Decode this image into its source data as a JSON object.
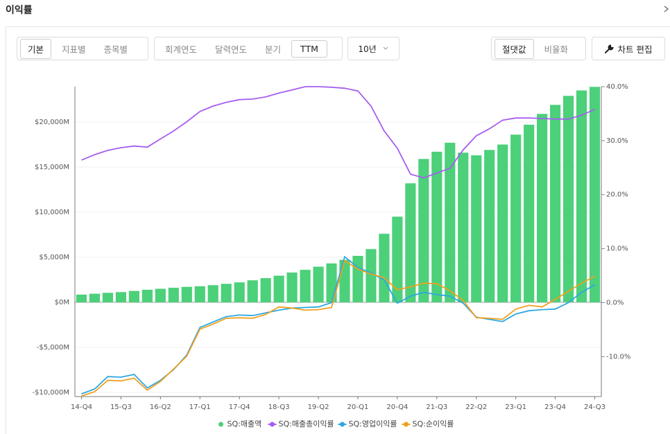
{
  "header": {
    "title": "이익률"
  },
  "toolbar": {
    "view_tabs": [
      "기본",
      "지표별",
      "종목별"
    ],
    "period_tabs": [
      "회계연도",
      "달력연도",
      "분기",
      "TTM"
    ],
    "range": "10년",
    "mode_tabs": [
      "절댓값",
      "비율화"
    ],
    "edit": "차트 편집"
  },
  "chart_data": {
    "type": "combo",
    "categories": [
      "14-Q4",
      null,
      null,
      "15-Q3",
      null,
      null,
      "16-Q2",
      null,
      null,
      "17-Q1",
      null,
      null,
      "17-Q4",
      null,
      null,
      "18-Q3",
      null,
      null,
      "19-Q2",
      null,
      null,
      "20-Q1",
      null,
      null,
      "20-Q4",
      null,
      null,
      "21-Q3",
      null,
      null,
      "22-Q2",
      null,
      null,
      "23-Q1",
      null,
      null,
      "23-Q4",
      null,
      null,
      "24-Q3"
    ],
    "ylim": [
      -10460,
      23920
    ],
    "yticks": [
      {
        "value": -10000,
        "label": "-$10,000M"
      },
      {
        "value": -5000,
        "label": "-$5,000M"
      },
      {
        "value": 0,
        "label": "$0M"
      },
      {
        "value": 5000,
        "label": "$5,000M"
      },
      {
        "value": 10000,
        "label": "$10,000M"
      },
      {
        "value": 15000,
        "label": "$15,000M"
      },
      {
        "value": 20000,
        "label": "$20,000M"
      }
    ],
    "y2lim": [
      -17.4,
      40.0
    ],
    "y2ticks": [
      {
        "value": -10,
        "label": "-10.0%"
      },
      {
        "value": 0,
        "label": "0.0%"
      },
      {
        "value": 10,
        "label": "10.0%"
      },
      {
        "value": 20,
        "label": "20.0%"
      },
      {
        "value": 30,
        "label": "30.0%"
      },
      {
        "value": 40,
        "label": "40.0%"
      }
    ],
    "grid": true,
    "legend": "bottom",
    "series": [
      {
        "name": "SQ:매출액",
        "type": "bar",
        "color": "#4cd07a",
        "values": [
          850,
          950,
          1050,
          1130,
          1260,
          1390,
          1500,
          1610,
          1710,
          1780,
          1900,
          2050,
          2210,
          2440,
          2680,
          2950,
          3300,
          3600,
          3950,
          4310,
          4710,
          5150,
          5900,
          7600,
          9500,
          13200,
          15900,
          16700,
          17700,
          16600,
          16300,
          16900,
          17500,
          18600,
          19700,
          20900,
          21900,
          22900,
          23500,
          23900
        ]
      },
      {
        "name": "SQ:매출총이익률",
        "type": "line",
        "axis": "y2",
        "color": "#a55ef0",
        "values": [
          26.4,
          27.4,
          28.2,
          28.7,
          29.0,
          28.8,
          30.3,
          31.8,
          33.5,
          35.4,
          36.4,
          37.1,
          37.6,
          37.7,
          38.1,
          38.8,
          39.4,
          40.0,
          40.0,
          39.9,
          39.7,
          39.2,
          36.4,
          31.8,
          28.6,
          23.8,
          23.1,
          24.0,
          24.9,
          28.3,
          30.9,
          32.2,
          33.8,
          34.2,
          34.2,
          34.1,
          34.0,
          34.0,
          34.7,
          35.8
        ]
      },
      {
        "name": "SQ:영업이익률",
        "type": "line",
        "axis": "y2",
        "color": "#2ea8e0",
        "values": [
          -16.9,
          -16.0,
          -13.7,
          -13.8,
          -13.3,
          -15.8,
          -14.4,
          -12.4,
          -9.7,
          -4.6,
          -3.6,
          -2.6,
          -2.3,
          -2.4,
          -1.9,
          -1.4,
          -1.0,
          -0.9,
          -0.8,
          0.0,
          8.5,
          6.5,
          5.5,
          4.2,
          -0.1,
          1.2,
          1.9,
          1.5,
          1.2,
          -0.1,
          -2.7,
          -3.1,
          -3.5,
          -2.1,
          -1.5,
          -1.3,
          -1.2,
          0.0,
          1.9,
          3.3
        ]
      },
      {
        "name": "SQ:순이익률",
        "type": "line",
        "axis": "y2",
        "color": "#f0a020",
        "values": [
          -17.3,
          -16.5,
          -14.4,
          -14.5,
          -14.0,
          -16.2,
          -14.6,
          -12.3,
          -9.9,
          -4.9,
          -4.0,
          -2.9,
          -2.8,
          -2.9,
          -2.2,
          -0.8,
          -1.0,
          -1.4,
          -1.3,
          -0.9,
          7.8,
          6.2,
          5.3,
          4.6,
          2.4,
          2.9,
          3.6,
          3.5,
          2.2,
          0.4,
          -2.8,
          -2.9,
          -3.1,
          -1.2,
          -0.5,
          -0.8,
          0.6,
          2.1,
          3.6,
          4.9
        ]
      }
    ]
  }
}
